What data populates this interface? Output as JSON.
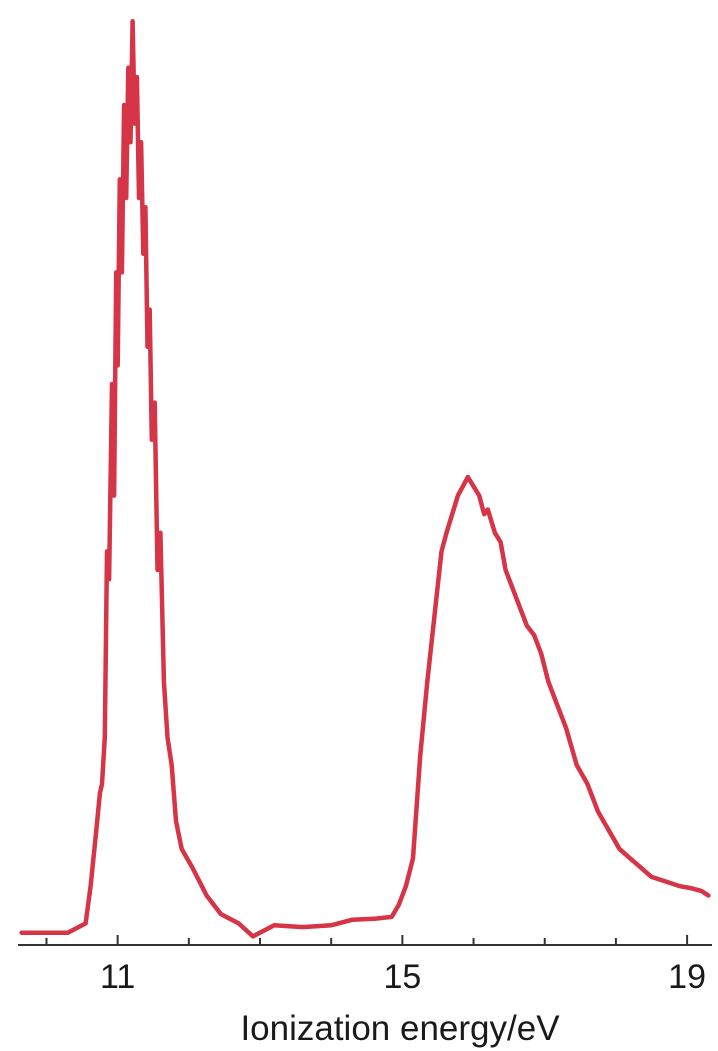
{
  "chart_data": {
    "type": "line",
    "title": "",
    "xlabel": "Ionization energy/eV",
    "ylabel": "",
    "xlim": [
      9.6,
      19.35
    ],
    "ylim": [
      0,
      1.0
    ],
    "x_ticks_labeled": [
      11,
      15,
      19
    ],
    "x_ticks_minor": [
      10,
      12,
      13,
      14,
      16,
      17,
      18
    ],
    "x_tick_labels": [
      "11",
      "15",
      "19"
    ],
    "grid": false,
    "legend": "none",
    "series": [
      {
        "color": "#d63447",
        "points": [
          [
            9.65,
            0.01
          ],
          [
            10.0,
            0.01
          ],
          [
            10.3,
            0.01
          ],
          [
            10.55,
            0.02
          ],
          [
            10.62,
            0.06
          ],
          [
            10.7,
            0.12
          ],
          [
            10.75,
            0.16
          ],
          [
            10.78,
            0.17
          ],
          [
            10.82,
            0.22
          ],
          [
            10.85,
            0.42
          ],
          [
            10.88,
            0.39
          ],
          [
            10.92,
            0.6
          ],
          [
            10.95,
            0.48
          ],
          [
            10.98,
            0.72
          ],
          [
            11.0,
            0.62
          ],
          [
            11.03,
            0.82
          ],
          [
            11.06,
            0.72
          ],
          [
            11.09,
            0.9
          ],
          [
            11.12,
            0.8
          ],
          [
            11.15,
            0.94
          ],
          [
            11.18,
            0.86
          ],
          [
            11.21,
            0.99
          ],
          [
            11.24,
            0.88
          ],
          [
            11.27,
            0.93
          ],
          [
            11.3,
            0.8
          ],
          [
            11.33,
            0.86
          ],
          [
            11.36,
            0.74
          ],
          [
            11.39,
            0.79
          ],
          [
            11.42,
            0.64
          ],
          [
            11.45,
            0.68
          ],
          [
            11.48,
            0.54
          ],
          [
            11.52,
            0.58
          ],
          [
            11.56,
            0.4
          ],
          [
            11.6,
            0.44
          ],
          [
            11.65,
            0.28
          ],
          [
            11.7,
            0.22
          ],
          [
            11.76,
            0.19
          ],
          [
            11.82,
            0.13
          ],
          [
            11.9,
            0.1
          ],
          [
            12.05,
            0.08
          ],
          [
            12.25,
            0.05
          ],
          [
            12.45,
            0.03
          ],
          [
            12.7,
            0.02
          ],
          [
            12.9,
            0.006
          ],
          [
            13.2,
            0.018
          ],
          [
            13.6,
            0.016
          ],
          [
            14.0,
            0.018
          ],
          [
            14.3,
            0.024
          ],
          [
            14.6,
            0.025
          ],
          [
            14.85,
            0.027
          ],
          [
            14.95,
            0.04
          ],
          [
            15.05,
            0.06
          ],
          [
            15.15,
            0.09
          ],
          [
            15.25,
            0.2
          ],
          [
            15.35,
            0.28
          ],
          [
            15.45,
            0.35
          ],
          [
            15.55,
            0.42
          ],
          [
            15.62,
            0.44
          ],
          [
            15.7,
            0.46
          ],
          [
            15.78,
            0.48
          ],
          [
            15.85,
            0.49
          ],
          [
            15.92,
            0.5
          ],
          [
            16.0,
            0.49
          ],
          [
            16.08,
            0.48
          ],
          [
            16.15,
            0.46
          ],
          [
            16.2,
            0.465
          ],
          [
            16.3,
            0.44
          ],
          [
            16.38,
            0.43
          ],
          [
            16.45,
            0.4
          ],
          [
            16.55,
            0.38
          ],
          [
            16.65,
            0.36
          ],
          [
            16.75,
            0.34
          ],
          [
            16.85,
            0.33
          ],
          [
            16.95,
            0.31
          ],
          [
            17.05,
            0.28
          ],
          [
            17.15,
            0.26
          ],
          [
            17.3,
            0.23
          ],
          [
            17.45,
            0.19
          ],
          [
            17.6,
            0.17
          ],
          [
            17.75,
            0.14
          ],
          [
            17.9,
            0.12
          ],
          [
            18.05,
            0.1
          ],
          [
            18.2,
            0.09
          ],
          [
            18.35,
            0.08
          ],
          [
            18.5,
            0.07
          ],
          [
            18.7,
            0.065
          ],
          [
            18.9,
            0.06
          ],
          [
            19.05,
            0.058
          ],
          [
            19.2,
            0.055
          ],
          [
            19.3,
            0.05
          ]
        ]
      }
    ]
  }
}
